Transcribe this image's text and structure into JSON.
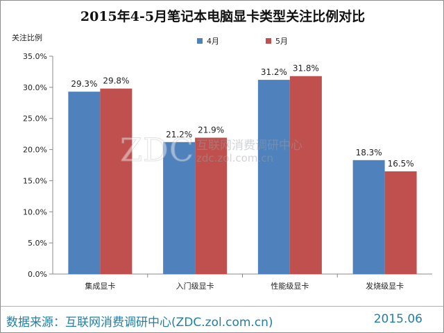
{
  "chart_data": {
    "type": "bar",
    "title": "2015年4-5月笔记本电脑显卡类型关注比例对比",
    "ylabel": "关注比例",
    "xlabel": "",
    "categories": [
      "集成显卡",
      "入门级显卡",
      "性能级显卡",
      "发烧级显卡"
    ],
    "series": [
      {
        "name": "4月",
        "color": "#4f81bd",
        "values": [
          29.3,
          21.2,
          31.2,
          18.3
        ],
        "labels": [
          "29.3%",
          "21.2%",
          "31.2%",
          "18.3%"
        ]
      },
      {
        "name": "5月",
        "color": "#c0504d",
        "values": [
          29.8,
          21.9,
          31.8,
          16.5
        ],
        "labels": [
          "29.8%",
          "21.9%",
          "31.8%",
          "16.5%"
        ]
      }
    ],
    "ylim": [
      0,
      35
    ],
    "yticks": [
      0,
      5,
      10,
      15,
      20,
      25,
      30,
      35
    ],
    "ytick_labels": [
      "0.0%",
      "5.0%",
      "10.0%",
      "15.0%",
      "20.0%",
      "25.0%",
      "30.0%",
      "35.0%"
    ],
    "grid": false,
    "legend_position": "top-right"
  },
  "watermark": {
    "logo": "ZDC",
    "name": "互联网消费调研中心",
    "url": "zdc.zol.com.cn"
  },
  "footer": {
    "source": "数据来源：互联网消费调研中心(ZDC.zol.com.cn)",
    "date": "2015.06"
  }
}
